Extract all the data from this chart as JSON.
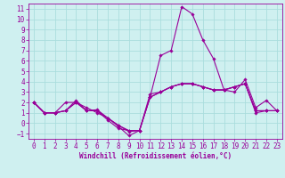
{
  "xlabel": "Windchill (Refroidissement éolien,°C)",
  "ylabel": "",
  "background_color": "#cff0f0",
  "grid_color": "#aadddd",
  "line_color": "#990099",
  "xlim": [
    -0.5,
    23.5
  ],
  "ylim": [
    -1.5,
    11.5
  ],
  "xticks": [
    0,
    1,
    2,
    3,
    4,
    5,
    6,
    7,
    8,
    9,
    10,
    11,
    12,
    13,
    14,
    15,
    16,
    17,
    18,
    19,
    20,
    21,
    22,
    23
  ],
  "yticks": [
    -1,
    0,
    1,
    2,
    3,
    4,
    5,
    6,
    7,
    8,
    9,
    10,
    11
  ],
  "lines": [
    [
      2.0,
      1.0,
      1.0,
      2.0,
      2.0,
      1.5,
      1.0,
      0.5,
      -0.2,
      -0.8,
      -0.7,
      2.5,
      6.5,
      7.0,
      11.2,
      10.5,
      8.0,
      6.2,
      3.2,
      3.0,
      4.2,
      1.5,
      2.2,
      1.2
    ],
    [
      2.0,
      1.0,
      1.0,
      1.2,
      2.0,
      1.2,
      1.2,
      0.5,
      -0.3,
      -1.2,
      -0.7,
      2.5,
      3.0,
      3.5,
      3.8,
      3.8,
      3.5,
      3.2,
      3.2,
      3.5,
      3.8,
      1.2,
      1.2,
      1.2
    ],
    [
      2.0,
      1.0,
      1.0,
      1.2,
      2.0,
      1.2,
      1.2,
      0.3,
      -0.5,
      -0.7,
      -0.7,
      2.8,
      3.0,
      3.5,
      3.8,
      3.8,
      3.5,
      3.2,
      3.2,
      3.5,
      3.8,
      1.0,
      1.2,
      1.2
    ],
    [
      2.0,
      1.0,
      1.0,
      1.2,
      2.2,
      1.2,
      1.3,
      0.5,
      -0.2,
      -0.7,
      -0.7,
      2.5,
      3.0,
      3.5,
      3.8,
      3.8,
      3.5,
      3.2,
      3.2,
      3.5,
      3.8,
      1.2,
      1.2,
      1.2
    ]
  ],
  "tick_fontsize": 5.5,
  "xlabel_fontsize": 5.5,
  "marker_size": 1.8,
  "line_width": 0.8
}
